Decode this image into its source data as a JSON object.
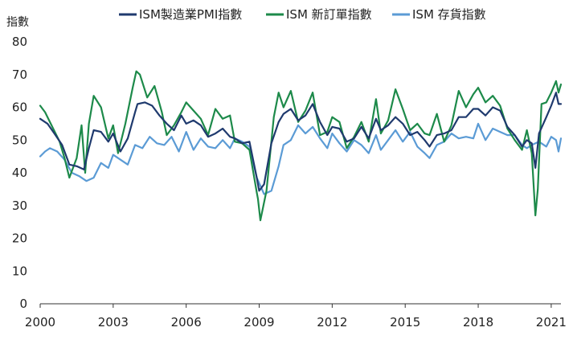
{
  "chart_data": {
    "type": "line",
    "ylabel": "指數",
    "ylim": [
      0,
      80
    ],
    "yticks": [
      0,
      10,
      20,
      30,
      40,
      50,
      60,
      70,
      80
    ],
    "xlim": [
      2000,
      2021.4
    ],
    "xticks": [
      2000,
      2003,
      2006,
      2009,
      2012,
      2015,
      2018,
      2021
    ],
    "legend_position": "top",
    "grid": false,
    "series": [
      {
        "name": "ISM製造業PMI指數",
        "color": "#1f3a6e",
        "x": [
          2000.0,
          2000.3,
          2000.6,
          2000.9,
          2001.2,
          2001.5,
          2001.8,
          2002.0,
          2002.2,
          2002.5,
          2002.8,
          2003.0,
          2003.3,
          2003.6,
          2003.9,
          2004.0,
          2004.3,
          2004.6,
          2004.9,
          2005.2,
          2005.5,
          2005.8,
          2006.0,
          2006.3,
          2006.6,
          2006.9,
          2007.2,
          2007.5,
          2007.8,
          2008.0,
          2008.3,
          2008.6,
          2008.9,
          2009.0,
          2009.2,
          2009.5,
          2009.8,
          2010.0,
          2010.3,
          2010.6,
          2010.9,
          2011.2,
          2011.5,
          2011.8,
          2012.0,
          2012.3,
          2012.6,
          2012.9,
          2013.2,
          2013.5,
          2013.8,
          2014.0,
          2014.3,
          2014.6,
          2014.9,
          2015.2,
          2015.5,
          2015.8,
          2016.0,
          2016.3,
          2016.6,
          2016.9,
          2017.2,
          2017.5,
          2017.8,
          2018.0,
          2018.3,
          2018.6,
          2018.9,
          2019.2,
          2019.5,
          2019.8,
          2020.0,
          2020.2,
          2020.35,
          2020.5,
          2020.8,
          2021.0,
          2021.2,
          2021.3,
          2021.4
        ],
        "y": [
          56.5,
          55.0,
          51.8,
          48.5,
          42.5,
          42.0,
          41.0,
          47.5,
          53.0,
          52.5,
          49.5,
          52.0,
          46.5,
          50.5,
          58.5,
          61.0,
          61.5,
          60.5,
          57.5,
          55.0,
          53.0,
          57.5,
          55.0,
          56.0,
          54.5,
          51.0,
          52.0,
          53.5,
          51.0,
          50.5,
          49.0,
          49.5,
          38.5,
          34.5,
          36.5,
          49.0,
          55.5,
          58.0,
          59.5,
          56.0,
          57.5,
          61.0,
          55.5,
          51.5,
          54.0,
          53.5,
          49.5,
          50.5,
          54.0,
          50.5,
          56.5,
          53.0,
          54.5,
          57.0,
          55.0,
          51.5,
          52.5,
          50.0,
          48.0,
          51.5,
          52.0,
          53.0,
          57.0,
          57.0,
          59.5,
          59.5,
          57.5,
          60.0,
          59.0,
          54.0,
          51.5,
          48.0,
          50.0,
          49.0,
          41.5,
          52.0,
          57.0,
          60.5,
          64.5,
          61.0,
          61.0
        ]
      },
      {
        "name": "ISM 新訂單指數",
        "color": "#1d8a4a",
        "x": [
          2000.0,
          2000.2,
          2000.5,
          2000.8,
          2001.0,
          2001.2,
          2001.5,
          2001.7,
          2001.85,
          2002.0,
          2002.2,
          2002.5,
          2002.8,
          2003.0,
          2003.2,
          2003.5,
          2003.8,
          2003.95,
          2004.1,
          2004.4,
          2004.7,
          2005.0,
          2005.2,
          2005.5,
          2005.8,
          2006.0,
          2006.3,
          2006.6,
          2006.9,
          2007.2,
          2007.5,
          2007.8,
          2008.0,
          2008.3,
          2008.6,
          2008.9,
          2008.95,
          2009.05,
          2009.3,
          2009.6,
          2009.8,
          2010.0,
          2010.3,
          2010.6,
          2010.9,
          2011.2,
          2011.5,
          2011.8,
          2012.0,
          2012.3,
          2012.6,
          2012.9,
          2013.2,
          2013.5,
          2013.8,
          2014.0,
          2014.3,
          2014.6,
          2014.9,
          2015.2,
          2015.5,
          2015.8,
          2016.0,
          2016.3,
          2016.6,
          2016.9,
          2017.2,
          2017.5,
          2017.8,
          2018.0,
          2018.3,
          2018.6,
          2018.9,
          2019.2,
          2019.5,
          2019.8,
          2020.0,
          2020.2,
          2020.35,
          2020.45,
          2020.6,
          2020.8,
          2021.0,
          2021.2,
          2021.3,
          2021.4
        ],
        "y": [
          60.5,
          58.5,
          54.0,
          49.5,
          44.5,
          38.5,
          44.5,
          54.5,
          40.0,
          55.0,
          63.5,
          60.0,
          50.5,
          54.5,
          46.0,
          55.0,
          66.0,
          71.0,
          70.0,
          63.0,
          66.5,
          58.5,
          51.5,
          54.5,
          58.5,
          61.5,
          59.0,
          56.5,
          51.5,
          59.5,
          56.5,
          57.5,
          49.5,
          49.0,
          47.0,
          34.0,
          32.0,
          25.5,
          34.5,
          57.0,
          64.5,
          60.0,
          65.0,
          55.5,
          59.0,
          64.5,
          51.5,
          52.5,
          57.0,
          55.5,
          47.5,
          51.0,
          55.5,
          49.5,
          62.5,
          52.0,
          56.0,
          65.5,
          59.5,
          53.0,
          55.0,
          52.0,
          51.5,
          58.0,
          49.5,
          54.5,
          65.0,
          60.0,
          64.0,
          66.0,
          61.5,
          63.5,
          60.5,
          53.5,
          50.0,
          47.0,
          53.0,
          46.0,
          27.0,
          35.0,
          61.0,
          61.5,
          64.5,
          68.0,
          64.5,
          67.0
        ]
      },
      {
        "name": "ISM 存貨指數",
        "color": "#5b9bd5",
        "x": [
          2000.0,
          2000.2,
          2000.4,
          2000.7,
          2001.0,
          2001.3,
          2001.6,
          2001.9,
          2002.2,
          2002.5,
          2002.8,
          2003.0,
          2003.3,
          2003.6,
          2003.9,
          2004.2,
          2004.5,
          2004.8,
          2005.1,
          2005.4,
          2005.7,
          2006.0,
          2006.3,
          2006.6,
          2006.9,
          2007.2,
          2007.5,
          2007.8,
          2008.0,
          2008.3,
          2008.6,
          2008.9,
          2009.2,
          2009.5,
          2009.8,
          2010.0,
          2010.3,
          2010.6,
          2010.9,
          2011.2,
          2011.5,
          2011.8,
          2012.0,
          2012.3,
          2012.6,
          2012.9,
          2013.2,
          2013.5,
          2013.8,
          2014.0,
          2014.3,
          2014.6,
          2014.9,
          2015.2,
          2015.5,
          2015.8,
          2016.0,
          2016.3,
          2016.6,
          2016.9,
          2017.2,
          2017.5,
          2017.8,
          2018.0,
          2018.3,
          2018.6,
          2018.9,
          2019.2,
          2019.5,
          2019.8,
          2020.0,
          2020.2,
          2020.5,
          2020.8,
          2021.0,
          2021.2,
          2021.3,
          2021.4
        ],
        "y": [
          45.0,
          46.5,
          47.5,
          46.5,
          44.0,
          40.0,
          39.0,
          37.5,
          38.5,
          43.0,
          41.5,
          45.5,
          44.0,
          42.5,
          48.5,
          47.5,
          51.0,
          49.0,
          48.5,
          51.0,
          46.5,
          52.5,
          47.0,
          50.5,
          48.0,
          47.5,
          50.0,
          47.5,
          50.5,
          49.5,
          48.0,
          38.5,
          33.5,
          34.5,
          42.0,
          48.5,
          50.0,
          54.5,
          52.0,
          54.0,
          50.5,
          47.5,
          52.0,
          49.0,
          46.5,
          50.0,
          48.5,
          46.0,
          51.5,
          47.0,
          50.0,
          53.0,
          49.5,
          52.5,
          48.0,
          46.0,
          44.5,
          48.5,
          49.5,
          52.0,
          50.5,
          51.0,
          50.5,
          55.0,
          50.0,
          53.5,
          52.5,
          51.5,
          51.5,
          48.5,
          47.5,
          48.5,
          49.5,
          48.0,
          51.0,
          50.0,
          46.5,
          50.5
        ]
      }
    ]
  }
}
